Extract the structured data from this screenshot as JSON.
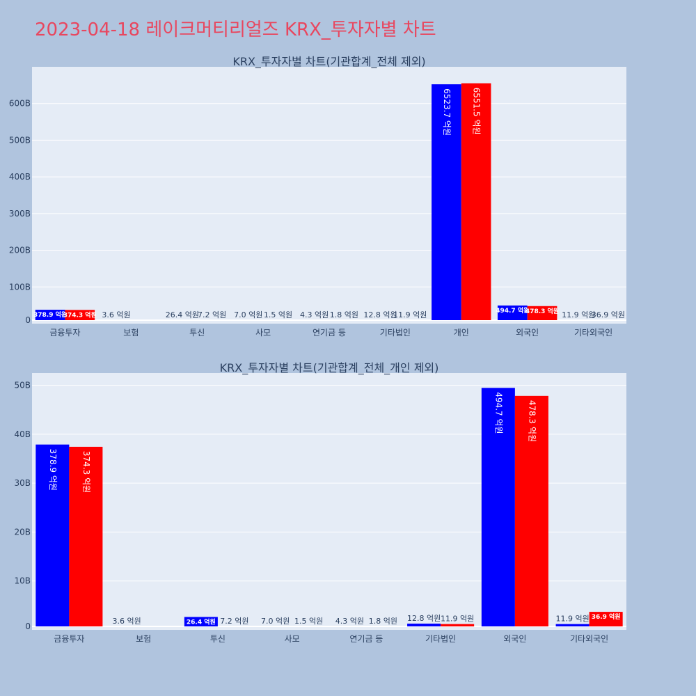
{
  "page_title": "2023-04-18 레이크머티리얼즈 KRX_투자자별 차트",
  "colors": {
    "background": "#b0c4de",
    "plot_bg": "#e5ecf6",
    "title": "#e8475f",
    "series_1": "#0000ff",
    "series_2": "#ff0000"
  },
  "chart_data": [
    {
      "type": "bar",
      "title": "KRX_투자자별 차트(기관합계_전체 제외)",
      "categories": [
        "금융투자",
        "보험",
        "투신",
        "사모",
        "연기금 등",
        "기타법인",
        "개인",
        "외국인",
        "기타외국인"
      ],
      "series": [
        {
          "color": "#0000ff",
          "values": [
            37.89,
            0.36,
            2.64,
            0.7,
            0.43,
            1.28,
            652.37,
            49.47,
            1.19
          ],
          "labels": [
            "378.9 억원",
            "3.6 억원",
            "26.4 억원",
            "7.0 억원",
            "4.3 억원",
            "12.8 억원",
            "6523.7 억원",
            "494.7 억원",
            "11.9 억원"
          ]
        },
        {
          "color": "#ff0000",
          "values": [
            37.43,
            0,
            0.72,
            0.15,
            0.18,
            1.19,
            655.15,
            47.83,
            3.69
          ],
          "labels": [
            "374.3 억원",
            "",
            "7.2 억원",
            "1.5 억원",
            "1.8 억원",
            "11.9 억원",
            "6551.5 억원",
            "478.3 억원",
            "36.9 억원"
          ]
        }
      ],
      "ylim": [
        0,
        700
      ],
      "yticks": [
        0,
        100,
        200,
        300,
        400,
        500,
        600
      ],
      "ytick_labels": [
        "0",
        "100B",
        "200B",
        "300B",
        "400B",
        "500B",
        "600B"
      ],
      "grid": true
    },
    {
      "type": "bar",
      "title": "KRX_투자자별 차트(기관합계_전체_개인 제외)",
      "categories": [
        "금융투자",
        "보험",
        "투신",
        "사모",
        "연기금 등",
        "기타법인",
        "외국인",
        "기타외국인"
      ],
      "series": [
        {
          "color": "#0000ff",
          "values": [
            37.89,
            0.36,
            2.64,
            0.7,
            0.43,
            1.28,
            49.47,
            1.19
          ],
          "labels": [
            "378.9 억원",
            "3.6 억원",
            "26.4 억원",
            "7.0 억원",
            "4.3 억원",
            "12.8 억원",
            "494.7 억원",
            "11.9 억원"
          ]
        },
        {
          "color": "#ff0000",
          "values": [
            37.43,
            0,
            0.72,
            0.15,
            0.18,
            1.19,
            47.83,
            3.69
          ],
          "labels": [
            "374.3 억원",
            "",
            "7.2 억원",
            "1.5 억원",
            "1.8 억원",
            "11.9 억원",
            "478.3 억원",
            "36.9 억원"
          ]
        }
      ],
      "ylim": [
        0,
        52.5
      ],
      "yticks": [
        0,
        10,
        20,
        30,
        40,
        50
      ],
      "ytick_labels": [
        "0",
        "10B",
        "20B",
        "30B",
        "40B",
        "50B"
      ],
      "grid": true
    }
  ]
}
